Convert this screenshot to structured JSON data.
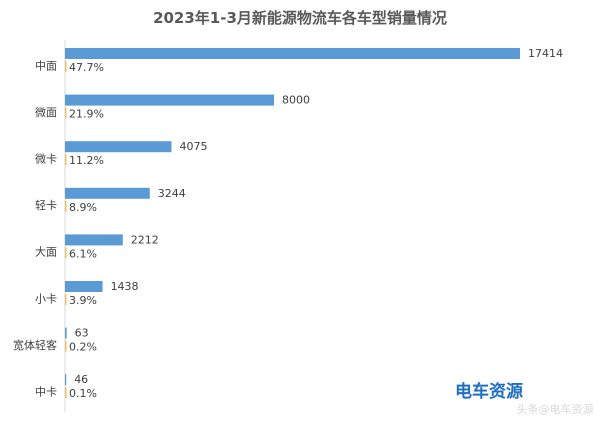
{
  "chart_data": {
    "type": "bar",
    "orientation": "horizontal",
    "title": "2023年1-3月新能源物流车各车型销量情况",
    "categories": [
      "中面",
      "微面",
      "微卡",
      "轻卡",
      "大面",
      "小卡",
      "宽体轻客",
      "中卡"
    ],
    "values": [
      17414,
      8000,
      4075,
      3244,
      2212,
      1438,
      63,
      46
    ],
    "percent_labels": [
      "47.7%",
      "21.9%",
      "11.2%",
      "8.9%",
      "6.1%",
      "3.9%",
      "0.2%",
      "0.1%"
    ],
    "xlim": [
      0,
      17414
    ],
    "grid": false,
    "legend": "none",
    "bar_color": "#5b9bd5",
    "secondary_bar_color": "#f0c060",
    "axis_color": "#d9d9d9"
  },
  "logo": {
    "text": "电车资源",
    "color": "#1e6fc4"
  },
  "watermark": {
    "text": "头条@电车资源"
  }
}
